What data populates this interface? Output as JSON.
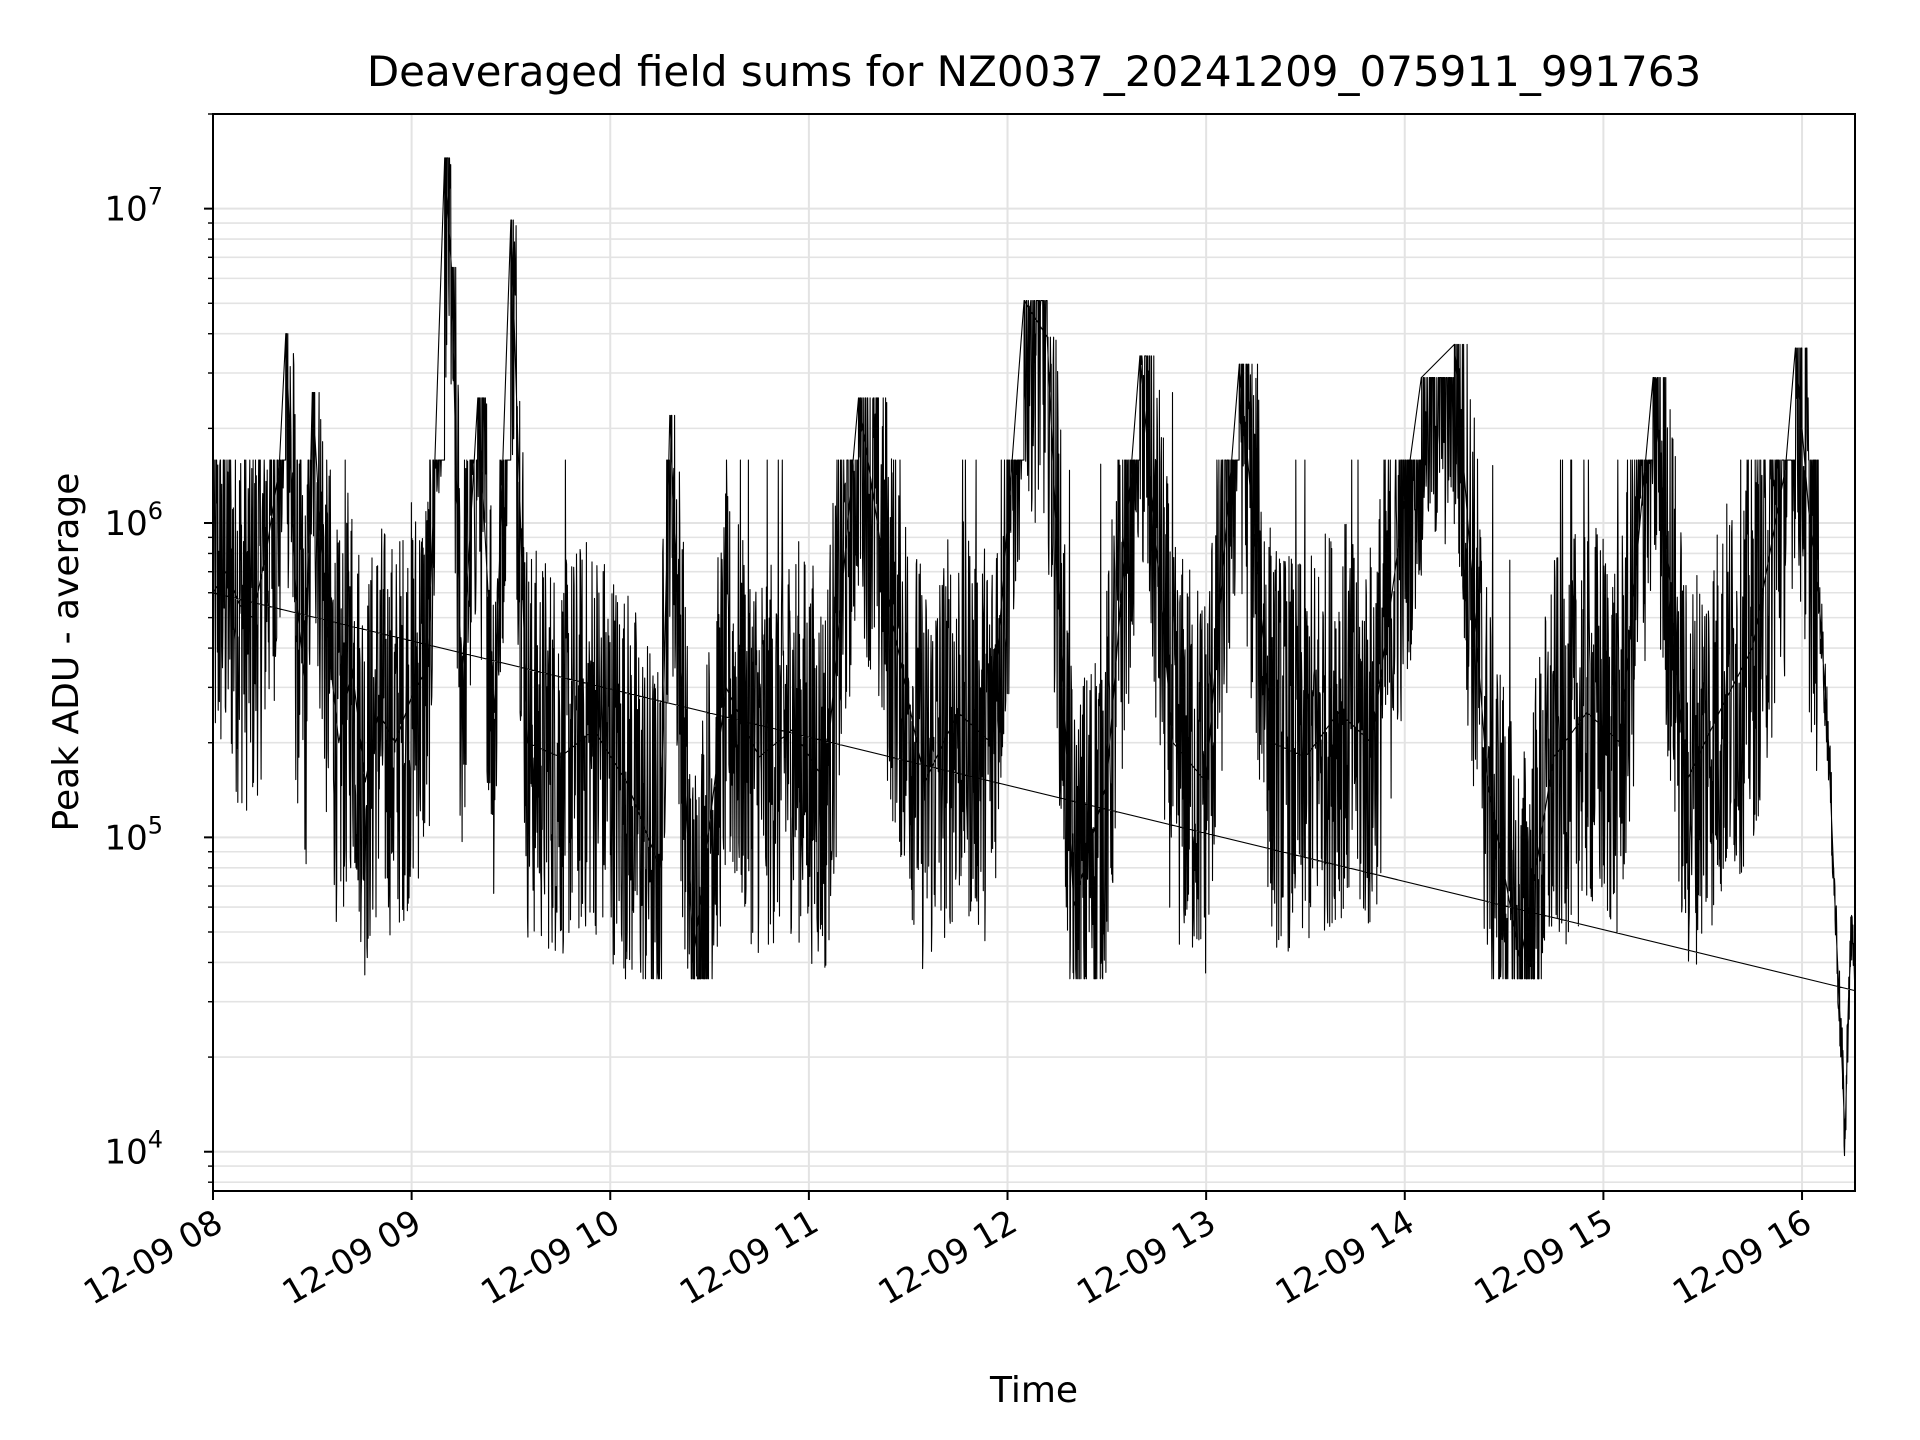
{
  "chart_data": {
    "type": "line",
    "title": "Deaveraged field sums for NZ0037_20241209_075911_991763",
    "xlabel": "Time",
    "ylabel": "Peak ADU - average",
    "yscale": "log",
    "ylim": [
      7500,
      20000000
    ],
    "xlim": [
      "2024-12-09 08:00",
      "2024-12-09 16:16"
    ],
    "grid": true,
    "x_tick_labels": [
      "12-09 08",
      "12-09 09",
      "12-09 10",
      "12-09 11",
      "12-09 12",
      "12-09 13",
      "12-09 14",
      "12-09 15",
      "12-09 16"
    ],
    "y_tick_labels": [
      {
        "base": "10",
        "exp": "4",
        "value": 10000
      },
      {
        "base": "10",
        "exp": "5",
        "value": 100000
      },
      {
        "base": "10",
        "exp": "6",
        "value": 1000000
      },
      {
        "base": "10",
        "exp": "7",
        "value": 10000000
      }
    ],
    "line_color": "#000000",
    "grid_color": "#e3e3e3",
    "series": [
      {
        "name": "",
        "points": [
          [
            "2024-12-09 08:00",
            600000
          ],
          [
            "2024-12-09 08:04",
            700000
          ],
          [
            "2024-12-09 08:08",
            550000
          ],
          [
            "2024-12-09 08:12",
            500000
          ],
          [
            "2024-12-09 08:16",
            800000
          ],
          [
            "2024-12-09 08:20",
            1500000
          ],
          [
            "2024-12-09 08:22",
            4000000
          ],
          [
            "2024-12-09 08:25",
            600000
          ],
          [
            "2024-12-09 08:28",
            300000
          ],
          [
            "2024-12-09 08:30",
            2600000
          ],
          [
            "2024-12-09 08:34",
            500000
          ],
          [
            "2024-12-09 08:38",
            200000
          ],
          [
            "2024-12-09 08:42",
            350000
          ],
          [
            "2024-12-09 08:46",
            150000
          ],
          [
            "2024-12-09 08:50",
            250000
          ],
          [
            "2024-12-09 08:55",
            200000
          ],
          [
            "2024-12-09 09:00",
            280000
          ],
          [
            "2024-12-09 09:05",
            350000
          ],
          [
            "2024-12-09 09:10",
            14500000
          ],
          [
            "2024-12-09 09:12",
            6500000
          ],
          [
            "2024-12-09 09:15",
            300000
          ],
          [
            "2024-12-09 09:20",
            2500000
          ],
          [
            "2024-12-09 09:25",
            250000
          ],
          [
            "2024-12-09 09:30",
            9200000
          ],
          [
            "2024-12-09 09:35",
            200000
          ],
          [
            "2024-12-09 09:45",
            180000
          ],
          [
            "2024-12-09 09:55",
            220000
          ],
          [
            "2024-12-09 10:05",
            150000
          ],
          [
            "2024-12-09 10:15",
            80000
          ],
          [
            "2024-12-09 10:18",
            2200000
          ],
          [
            "2024-12-09 10:25",
            40000
          ],
          [
            "2024-12-09 10:35",
            300000
          ],
          [
            "2024-12-09 10:45",
            180000
          ],
          [
            "2024-12-09 10:55",
            220000
          ],
          [
            "2024-12-09 11:05",
            150000
          ],
          [
            "2024-12-09 11:15",
            2500000
          ],
          [
            "2024-12-09 11:25",
            500000
          ],
          [
            "2024-12-09 11:35",
            150000
          ],
          [
            "2024-12-09 11:45",
            250000
          ],
          [
            "2024-12-09 11:55",
            200000
          ],
          [
            "2024-12-09 12:05",
            5100000
          ],
          [
            "2024-12-09 12:12",
            3900000
          ],
          [
            "2024-12-09 12:20",
            60000
          ],
          [
            "2024-12-09 12:30",
            150000
          ],
          [
            "2024-12-09 12:40",
            3400000
          ],
          [
            "2024-12-09 12:50",
            200000
          ],
          [
            "2024-12-09 13:00",
            150000
          ],
          [
            "2024-12-09 13:10",
            3200000
          ],
          [
            "2024-12-09 13:20",
            200000
          ],
          [
            "2024-12-09 13:30",
            180000
          ],
          [
            "2024-12-09 13:40",
            250000
          ],
          [
            "2024-12-09 13:50",
            200000
          ],
          [
            "2024-12-09 14:05",
            2900000
          ],
          [
            "2024-12-09 14:15",
            3700000
          ],
          [
            "2024-12-09 14:25",
            150000
          ],
          [
            "2024-12-09 14:35",
            40000
          ],
          [
            "2024-12-09 14:45",
            180000
          ],
          [
            "2024-12-09 14:55",
            250000
          ],
          [
            "2024-12-09 15:05",
            200000
          ],
          [
            "2024-12-09 15:15",
            2900000
          ],
          [
            "2024-12-09 15:25",
            150000
          ],
          [
            "2024-12-09 15:35",
            250000
          ],
          [
            "2024-12-09 15:45",
            400000
          ],
          [
            "2024-12-09 15:55",
            1500000
          ],
          [
            "2024-12-09 15:58",
            3600000
          ],
          [
            "2024-12-09 16:02",
            1100000
          ],
          [
            "2024-12-09 16:05",
            600000
          ],
          [
            "2024-12-09 16:08",
            200000
          ],
          [
            "2024-12-09 16:10",
            60000
          ],
          [
            "2024-12-09 16:12",
            20000
          ],
          [
            "2024-12-09 16:13",
            11000
          ],
          [
            "2024-12-09 16:14",
            30000
          ],
          [
            "2024-12-09 16:15",
            50000
          ],
          [
            "2024-12-09 16:16",
            40000
          ]
        ]
      }
    ]
  }
}
